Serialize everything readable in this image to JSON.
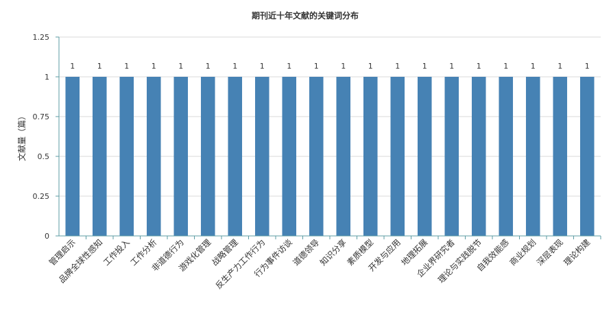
{
  "chart_data": {
    "type": "bar",
    "title": "期刊近十年文献的关键词分布",
    "xlabel": "",
    "ylabel": "文献量（篇）",
    "ylim": [
      0,
      1.25
    ],
    "yticks": [
      "0",
      "0.25",
      "0.5",
      "0.75",
      "1",
      "1.25"
    ],
    "grid": true,
    "legend": "none",
    "categories": [
      "管理启示",
      "品牌全球性感知",
      "工作投入",
      "工作分析",
      "非道德行为",
      "游戏化管理",
      "战略管理",
      "反生产力工作行为",
      "行为事件访谈",
      "道德领导",
      "知识分享",
      "素质模型",
      "开发与应用",
      "地理拓展",
      "企业界研究者",
      "理论与实践脱节",
      "自我效能感",
      "商业规划",
      "深层表现",
      "理论构建"
    ],
    "values": [
      1,
      1,
      1,
      1,
      1,
      1,
      1,
      1,
      1,
      1,
      1,
      1,
      1,
      1,
      1,
      1,
      1,
      1,
      1,
      1
    ],
    "bar_color": "#4682b4",
    "axis_color": "#5b9ba3"
  }
}
